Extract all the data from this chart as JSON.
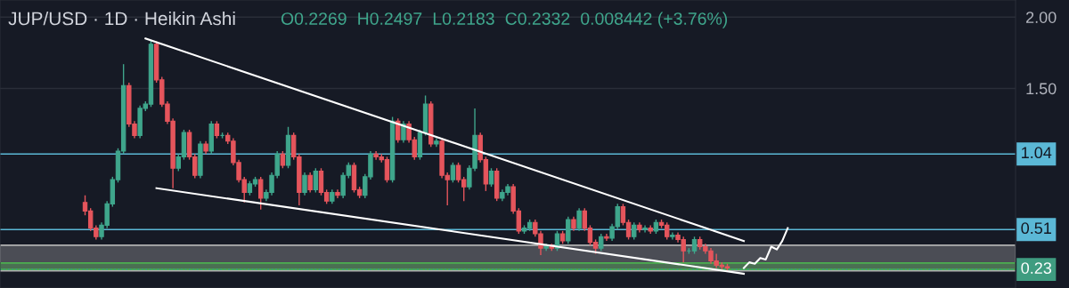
{
  "chart_data": {
    "type": "candlestick",
    "title": "JUP/USD · 1D · Heikin Ashi",
    "annotations": [
      "O0.2269",
      "H0.2497",
      "L0.2183",
      "C0.2332",
      "0.008442 (+3.76%)"
    ],
    "categories": [
      null,
      null,
      null,
      null,
      null,
      null,
      null,
      null,
      null,
      null,
      null,
      null,
      null,
      null,
      null,
      null,
      null,
      null,
      null,
      null,
      null,
      null,
      null,
      null,
      null,
      null,
      null,
      null,
      null,
      null,
      null,
      null,
      null,
      null,
      null,
      null,
      null,
      null,
      null,
      null,
      null,
      null,
      null,
      null,
      null,
      null,
      null,
      null,
      null,
      null,
      null,
      null,
      null,
      null,
      null,
      null,
      null,
      null,
      null,
      null,
      null,
      null,
      null,
      null,
      null,
      null,
      null,
      null,
      null,
      null,
      null,
      null,
      null,
      null,
      null,
      null,
      null,
      null,
      null,
      null,
      null,
      null,
      null,
      null,
      null,
      null,
      null,
      null,
      null,
      null,
      null,
      null,
      null,
      null,
      null,
      null,
      null,
      null,
      null,
      null,
      null,
      null,
      null,
      null,
      null,
      null,
      null,
      null,
      null,
      null,
      null,
      null,
      null,
      null,
      null,
      null,
      null,
      null,
      null,
      null,
      null,
      null,
      null,
      null,
      null,
      null,
      null,
      null,
      null,
      null,
      null,
      null,
      null,
      null,
      null,
      null,
      null,
      null,
      null,
      null,
      null,
      null,
      null,
      null,
      null,
      null,
      null,
      null,
      null,
      null,
      null,
      null,
      null,
      null,
      null,
      null,
      null,
      null,
      null,
      null,
      null,
      null,
      null,
      null,
      null,
      null,
      null,
      null,
      null,
      null,
      null,
      null,
      null,
      null,
      null,
      null,
      null,
      null,
      null,
      null,
      null,
      null,
      null,
      null,
      null
    ],
    "ohlc": [
      null,
      null,
      null,
      null,
      null,
      null,
      null,
      null,
      null,
      null,
      null,
      null,
      null,
      null,
      null,
      [
        0.7,
        0.75,
        0.61,
        0.64
      ],
      [
        0.64,
        0.66,
        0.5,
        0.52
      ],
      [
        0.52,
        0.54,
        0.44,
        0.46
      ],
      [
        0.46,
        0.56,
        0.44,
        0.54
      ],
      [
        0.54,
        0.71,
        0.52,
        0.69
      ],
      [
        0.69,
        0.88,
        0.67,
        0.86
      ],
      [
        0.86,
        1.08,
        0.84,
        1.06
      ],
      [
        1.06,
        1.67,
        1.04,
        1.52
      ],
      [
        1.52,
        1.54,
        1.23,
        1.25
      ],
      [
        1.25,
        1.27,
        1.15,
        1.17
      ],
      [
        1.17,
        1.38,
        1.15,
        1.36
      ],
      [
        1.36,
        1.41,
        1.34,
        1.39
      ],
      [
        1.39,
        1.84,
        1.37,
        1.81
      ],
      [
        1.81,
        1.83,
        1.54,
        1.56
      ],
      [
        1.56,
        1.58,
        1.37,
        1.39
      ],
      [
        1.39,
        1.41,
        1.25,
        1.27
      ],
      [
        1.27,
        1.29,
        0.8,
        0.94
      ],
      [
        0.94,
        1.04,
        0.92,
        1.02
      ],
      [
        1.02,
        1.21,
        1.0,
        1.19
      ],
      [
        1.19,
        1.21,
        1.0,
        1.02
      ],
      [
        1.02,
        1.04,
        0.87,
        0.89
      ],
      [
        0.89,
        1.13,
        0.87,
        1.11
      ],
      [
        1.11,
        1.13,
        1.04,
        1.06
      ],
      [
        1.06,
        1.27,
        1.04,
        1.25
      ],
      [
        1.25,
        1.27,
        1.15,
        1.17
      ],
      [
        1.17,
        1.19,
        1.15,
        1.17
      ],
      [
        1.17,
        1.19,
        1.11,
        1.13
      ],
      [
        1.13,
        1.15,
        0.96,
        0.98
      ],
      [
        0.98,
        1.0,
        0.84,
        0.86
      ],
      [
        0.86,
        0.88,
        0.7,
        0.77
      ],
      [
        0.77,
        0.85,
        0.75,
        0.83
      ],
      [
        0.83,
        0.88,
        0.81,
        0.86
      ],
      [
        0.86,
        0.88,
        0.65,
        0.73
      ],
      [
        0.73,
        0.79,
        0.71,
        0.77
      ],
      [
        0.77,
        0.91,
        0.75,
        0.89
      ],
      [
        0.89,
        1.06,
        0.87,
        1.04
      ],
      [
        1.04,
        1.06,
        0.94,
        0.96
      ],
      [
        0.96,
        1.23,
        0.94,
        1.17
      ],
      [
        1.17,
        1.19,
        1.0,
        1.02
      ],
      [
        1.02,
        1.04,
        0.68,
        0.77
      ],
      [
        0.77,
        0.91,
        0.75,
        0.89
      ],
      [
        0.89,
        0.91,
        0.77,
        0.79
      ],
      [
        0.79,
        0.94,
        0.77,
        0.92
      ],
      [
        0.92,
        0.94,
        0.75,
        0.77
      ],
      [
        0.77,
        0.79,
        0.69,
        0.71
      ],
      [
        0.71,
        0.79,
        0.69,
        0.77
      ],
      [
        0.77,
        0.79,
        0.73,
        0.75
      ],
      [
        0.75,
        0.91,
        0.73,
        0.89
      ],
      [
        0.89,
        0.98,
        0.87,
        0.96
      ],
      [
        0.96,
        0.98,
        0.77,
        0.79
      ],
      [
        0.79,
        0.81,
        0.73,
        0.75
      ],
      [
        0.75,
        0.9,
        0.73,
        0.88
      ],
      [
        0.88,
        1.06,
        0.86,
        1.04
      ],
      [
        1.04,
        1.06,
        1.0,
        1.02
      ],
      [
        1.02,
        1.04,
        0.98,
        1.0
      ],
      [
        1.0,
        1.02,
        0.84,
        0.86
      ],
      [
        0.86,
        1.3,
        0.84,
        1.27
      ],
      [
        1.27,
        1.29,
        1.12,
        1.14
      ],
      [
        1.14,
        1.27,
        1.12,
        1.25
      ],
      [
        1.25,
        1.27,
        1.12,
        1.14
      ],
      [
        1.14,
        1.16,
        1.0,
        1.02
      ],
      [
        1.02,
        1.21,
        1.0,
        1.19
      ],
      [
        1.19,
        1.45,
        1.17,
        1.39
      ],
      [
        1.39,
        1.41,
        1.09,
        1.11
      ],
      [
        1.11,
        1.15,
        1.09,
        1.13
      ],
      [
        1.13,
        1.15,
        0.87,
        0.89
      ],
      [
        0.89,
        0.91,
        0.68,
        0.86
      ],
      [
        0.86,
        0.98,
        0.84,
        0.96
      ],
      [
        0.96,
        0.98,
        0.84,
        0.86
      ],
      [
        0.86,
        0.88,
        0.71,
        0.81
      ],
      [
        0.81,
        0.96,
        0.79,
        0.94
      ],
      [
        0.94,
        1.36,
        0.92,
        1.17
      ],
      [
        1.17,
        1.19,
        0.98,
        1.0
      ],
      [
        1.0,
        1.02,
        0.78,
        0.83
      ],
      [
        0.83,
        0.94,
        0.81,
        0.92
      ],
      [
        0.92,
        0.94,
        0.71,
        0.73
      ],
      [
        0.73,
        0.79,
        0.71,
        0.77
      ],
      [
        0.77,
        0.83,
        0.75,
        0.81
      ],
      [
        0.81,
        0.83,
        0.62,
        0.64
      ],
      [
        0.64,
        0.66,
        0.48,
        0.5
      ],
      [
        0.5,
        0.54,
        0.48,
        0.52
      ],
      [
        0.52,
        0.58,
        0.5,
        0.56
      ],
      [
        0.56,
        0.58,
        0.46,
        0.48
      ],
      [
        0.48,
        0.5,
        0.33,
        0.38
      ],
      [
        0.38,
        0.41,
        0.36,
        0.39
      ],
      [
        0.39,
        0.41,
        0.36,
        0.38
      ],
      [
        0.38,
        0.5,
        0.36,
        0.48
      ],
      [
        0.48,
        0.5,
        0.41,
        0.43
      ],
      [
        0.43,
        0.6,
        0.41,
        0.58
      ],
      [
        0.58,
        0.6,
        0.5,
        0.52
      ],
      [
        0.52,
        0.66,
        0.5,
        0.64
      ],
      [
        0.64,
        0.66,
        0.5,
        0.52
      ],
      [
        0.52,
        0.54,
        0.4,
        0.42
      ],
      [
        0.42,
        0.44,
        0.34,
        0.38
      ],
      [
        0.38,
        0.48,
        0.36,
        0.46
      ],
      [
        0.46,
        0.48,
        0.43,
        0.45
      ],
      [
        0.45,
        0.55,
        0.43,
        0.53
      ],
      [
        0.53,
        0.69,
        0.51,
        0.67
      ],
      [
        0.67,
        0.69,
        0.54,
        0.56
      ],
      [
        0.56,
        0.58,
        0.44,
        0.46
      ],
      [
        0.46,
        0.56,
        0.44,
        0.54
      ],
      [
        0.54,
        0.56,
        0.49,
        0.51
      ],
      [
        0.51,
        0.54,
        0.49,
        0.52
      ],
      [
        0.52,
        0.54,
        0.48,
        0.5
      ],
      [
        0.5,
        0.58,
        0.48,
        0.56
      ],
      [
        0.56,
        0.58,
        0.52,
        0.54
      ],
      [
        0.54,
        0.56,
        0.44,
        0.46
      ],
      [
        0.46,
        0.49,
        0.44,
        0.47
      ],
      [
        0.47,
        0.49,
        0.42,
        0.44
      ],
      [
        0.44,
        0.46,
        0.28,
        0.36
      ],
      [
        0.36,
        0.38,
        0.34,
        0.36
      ],
      [
        0.36,
        0.46,
        0.34,
        0.44
      ],
      [
        0.44,
        0.46,
        0.37,
        0.39
      ],
      [
        0.39,
        0.41,
        0.34,
        0.36
      ],
      [
        0.36,
        0.38,
        0.27,
        0.29
      ],
      [
        0.29,
        0.34,
        0.24,
        0.26
      ],
      [
        0.26,
        0.28,
        0.23,
        0.25
      ],
      [
        0.25,
        0.27,
        0.22,
        0.24
      ],
      null,
      null,
      null,
      null,
      null,
      null,
      null,
      null,
      null,
      null,
      null,
      null,
      null,
      null,
      null,
      null,
      null,
      null,
      null,
      null,
      null,
      null,
      null,
      null,
      null,
      null,
      null,
      null,
      null,
      null,
      null,
      null,
      null,
      null,
      null,
      null,
      null,
      null,
      null,
      null,
      null,
      null,
      null,
      null,
      null,
      null,
      null,
      null,
      null,
      null,
      null,
      null
    ],
    "series": [
      {
        "type": "line",
        "color": "#ffffff",
        "values": [
          null,
          null,
          null,
          null,
          null,
          null,
          null,
          null,
          null,
          null,
          null,
          null,
          null,
          null,
          null,
          null,
          null,
          null,
          null,
          null,
          null,
          null,
          null,
          null,
          null,
          null,
          1.85,
          null,
          null,
          null,
          null,
          null,
          null,
          null,
          null,
          null,
          null,
          null,
          null,
          null,
          null,
          null,
          null,
          null,
          null,
          null,
          null,
          null,
          null,
          null,
          null,
          null,
          null,
          null,
          null,
          null,
          null,
          null,
          null,
          null,
          null,
          null,
          null,
          null,
          null,
          null,
          null,
          null,
          null,
          null,
          null,
          null,
          null,
          null,
          null,
          null,
          null,
          null,
          null,
          null,
          null,
          null,
          null,
          null,
          null,
          null,
          null,
          null,
          null,
          null,
          null,
          null,
          null,
          null,
          null,
          null,
          null,
          null,
          null,
          null,
          null,
          null,
          null,
          null,
          null,
          null,
          null,
          null,
          null,
          null,
          null,
          null,
          null,
          null,
          null,
          null,
          null,
          null,
          null,
          null,
          null,
          null,
          null,
          null,
          null,
          null,
          null,
          null,
          null,
          null,
          null,
          null,
          null,
          null,
          null,
          0.43,
          null,
          null,
          null,
          null,
          null,
          null,
          null,
          null,
          null,
          null,
          null,
          null,
          null,
          null,
          null,
          null,
          null,
          null,
          null,
          null,
          null,
          null,
          null,
          null,
          null,
          null,
          null,
          null,
          null,
          null,
          null,
          null,
          null,
          null,
          null,
          null,
          null,
          null,
          null,
          null,
          null,
          null,
          null,
          null,
          null,
          null,
          null,
          null,
          null
        ]
      },
      {
        "type": "line",
        "color": "#ffffff",
        "values": [
          null,
          null,
          null,
          null,
          null,
          null,
          null,
          null,
          null,
          null,
          null,
          null,
          null,
          null,
          null,
          null,
          null,
          null,
          null,
          null,
          null,
          null,
          null,
          null,
          null,
          null,
          null,
          null,
          0.8,
          null,
          null,
          null,
          null,
          null,
          null,
          null,
          null,
          null,
          null,
          null,
          null,
          null,
          null,
          null,
          null,
          null,
          null,
          null,
          null,
          null,
          null,
          null,
          null,
          null,
          null,
          null,
          null,
          null,
          null,
          null,
          null,
          null,
          null,
          null,
          null,
          null,
          null,
          null,
          null,
          null,
          null,
          null,
          null,
          null,
          null,
          null,
          null,
          null,
          null,
          null,
          null,
          null,
          null,
          null,
          null,
          null,
          null,
          null,
          null,
          null,
          null,
          null,
          null,
          null,
          null,
          null,
          null,
          null,
          null,
          null,
          null,
          null,
          null,
          null,
          null,
          null,
          null,
          null,
          null,
          null,
          null,
          null,
          null,
          null,
          null,
          null,
          null,
          null,
          null,
          null,
          null,
          null,
          null,
          null,
          null,
          null,
          null,
          null,
          null,
          null,
          null,
          null,
          null,
          null,
          null,
          0.2,
          null,
          null,
          null,
          null,
          null,
          null,
          null,
          null,
          null,
          null,
          null,
          null,
          null,
          null,
          null,
          null,
          null,
          null,
          null,
          null,
          null,
          null,
          null,
          null,
          null,
          null,
          null,
          null,
          null,
          null,
          null,
          null,
          null,
          null,
          null,
          null,
          null,
          null,
          null,
          null,
          null,
          null,
          null,
          null,
          null,
          null,
          null,
          null,
          null
        ]
      },
      {
        "type": "line",
        "color": "#ffffff",
        "values": [
          null,
          null,
          null,
          null,
          null,
          null,
          null,
          null,
          null,
          null,
          null,
          null,
          null,
          null,
          null,
          null,
          null,
          null,
          null,
          null,
          null,
          null,
          null,
          null,
          null,
          null,
          null,
          null,
          null,
          null,
          null,
          null,
          null,
          null,
          null,
          null,
          null,
          null,
          null,
          null,
          null,
          null,
          null,
          null,
          null,
          null,
          null,
          null,
          null,
          null,
          null,
          null,
          null,
          null,
          null,
          null,
          null,
          null,
          null,
          null,
          null,
          null,
          null,
          null,
          null,
          null,
          null,
          null,
          null,
          null,
          null,
          null,
          null,
          null,
          null,
          null,
          null,
          null,
          null,
          null,
          null,
          null,
          null,
          null,
          null,
          null,
          null,
          null,
          null,
          null,
          null,
          null,
          null,
          null,
          null,
          null,
          null,
          null,
          null,
          null,
          null,
          null,
          null,
          null,
          null,
          null,
          null,
          null,
          null,
          null,
          null,
          null,
          null,
          null,
          null,
          null,
          null,
          null,
          null,
          null,
          null,
          null,
          null,
          null,
          null,
          null,
          null,
          null,
          null,
          null,
          null,
          null,
          null,
          null,
          null,
          0.24,
          0.28,
          0.27,
          0.31,
          0.3,
          0.39,
          0.37,
          0.43,
          0.52,
          null,
          null,
          null,
          null,
          null,
          null,
          null,
          null,
          null,
          null,
          null,
          null,
          null,
          null,
          null,
          null,
          null,
          null,
          null,
          null,
          null,
          null,
          null,
          null,
          null,
          null,
          null,
          null,
          null,
          null,
          null,
          null,
          null,
          null,
          null,
          null,
          null,
          null,
          null,
          null,
          null
        ]
      }
    ],
    "ylim": [
      0.1,
      2.12
    ],
    "yticks": [
      {
        "value": 1.5,
        "label": "1.50"
      },
      {
        "value": 2.0,
        "label": "2.00"
      }
    ],
    "ref_lines": [
      {
        "axis": "y",
        "value": 1.04,
        "label": "1.04",
        "color": "#5bb8d6",
        "line_style": "solid"
      },
      {
        "axis": "y",
        "value": 0.51,
        "label": "0.51",
        "color": "#5bb8d6",
        "line_style": "solid"
      },
      {
        "axis": "y",
        "value": 0.23,
        "label": "0.23",
        "color": "#3f9c80",
        "line_style": "dotted"
      }
    ],
    "bands": [
      {
        "axis": "y",
        "from": 0.22,
        "to": 0.4,
        "color": "#b0b0b0"
      },
      {
        "axis": "y",
        "from": 0.23,
        "to": 0.275,
        "color": "#4caf50"
      }
    ],
    "grid": "y",
    "tick_labels": "y",
    "legend": false,
    "marker": "none"
  }
}
